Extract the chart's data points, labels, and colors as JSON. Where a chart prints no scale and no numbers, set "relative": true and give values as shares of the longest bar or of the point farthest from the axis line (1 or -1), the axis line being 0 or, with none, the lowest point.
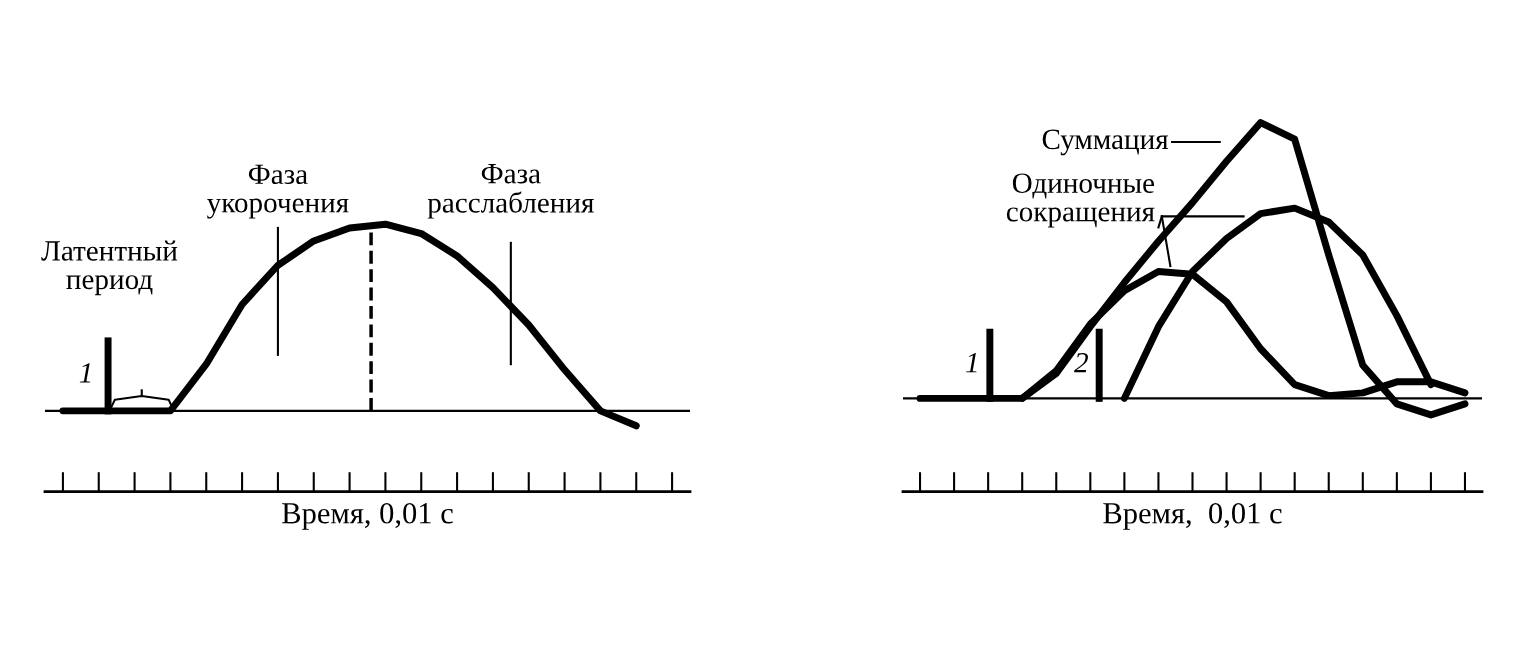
{
  "chart_data": [
    {
      "type": "line",
      "relative": true,
      "xlabel": "Время, 0,01 с",
      "categories": [
        null,
        null,
        null,
        null,
        null,
        null,
        null,
        null,
        null,
        null,
        null,
        null,
        null,
        null,
        null,
        null,
        null,
        null
      ],
      "grid": false,
      "marker": "none",
      "line_style": "solid",
      "series": [
        {
          "color": "#000000",
          "values": [
            0,
            0,
            0,
            0,
            0.25,
            0.57,
            0.78,
            0.91,
            0.98,
            1.0,
            0.95,
            0.83,
            0.66,
            0.46,
            0.22,
            0.0,
            -0.08,
            null
          ]
        }
      ],
      "annotations": [
        "Фаза\nукорочения",
        "Фаза\nрасслабления",
        "Латентный\nпериод",
        "1"
      ]
    },
    {
      "type": "line",
      "relative": true,
      "xlabel": "Время,  0,01 с",
      "categories": [
        null,
        null,
        null,
        null,
        null,
        null,
        null,
        null,
        null,
        null,
        null,
        null,
        null,
        null,
        null,
        null,
        null
      ],
      "grid": false,
      "marker": "none",
      "line_style": "solid",
      "series": [
        {
          "color": "#000000",
          "values": [
            0,
            0,
            0,
            0,
            0.09,
            0.26,
            0.42,
            0.57,
            0.71,
            0.86,
            1.0,
            0.94,
            0.52,
            0.12,
            -0.02,
            -0.06,
            -0.02
          ]
        },
        {
          "color": "#000000",
          "values": [
            null,
            null,
            null,
            0,
            0.1,
            0.27,
            0.39,
            0.46,
            0.45,
            0.35,
            0.18,
            0.05,
            0.01,
            0.02,
            0.06,
            0.06,
            0.02
          ]
        },
        {
          "color": "#000000",
          "values": [
            null,
            null,
            null,
            null,
            null,
            null,
            0,
            0.26,
            0.46,
            0.58,
            0.67,
            0.69,
            0.64,
            0.52,
            0.3,
            0.05,
            null
          ]
        }
      ],
      "annotations": [
        "Суммация",
        "Одиночные\nсокращения",
        "1",
        "2"
      ]
    }
  ]
}
